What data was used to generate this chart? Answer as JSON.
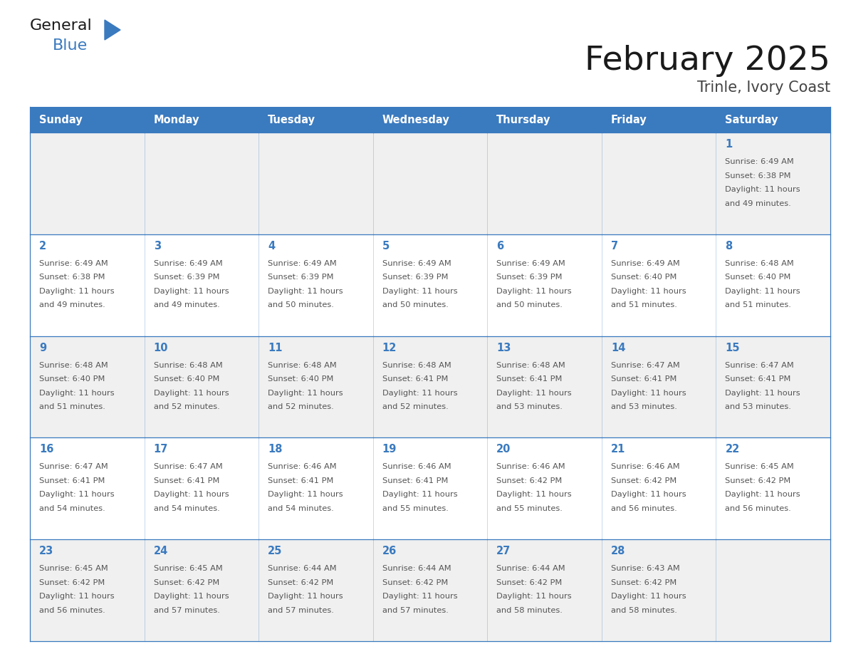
{
  "title": "February 2025",
  "subtitle": "Trinle, Ivory Coast",
  "days_of_week": [
    "Sunday",
    "Monday",
    "Tuesday",
    "Wednesday",
    "Thursday",
    "Friday",
    "Saturday"
  ],
  "header_bg": "#3a7abf",
  "header_text_color": "#ffffff",
  "cell_bg_white": "#ffffff",
  "cell_bg_gray": "#f0f0f0",
  "cell_border_color": "#3a7abf",
  "day_num_color": "#3a7abf",
  "info_text_color": "#555555",
  "title_color": "#1a1a1a",
  "subtitle_color": "#444444",
  "logo_general_color": "#1a1a1a",
  "logo_blue_color": "#3a7abf",
  "calendar": [
    [
      null,
      null,
      null,
      null,
      null,
      null,
      1
    ],
    [
      2,
      3,
      4,
      5,
      6,
      7,
      8
    ],
    [
      9,
      10,
      11,
      12,
      13,
      14,
      15
    ],
    [
      16,
      17,
      18,
      19,
      20,
      21,
      22
    ],
    [
      23,
      24,
      25,
      26,
      27,
      28,
      null
    ]
  ],
  "sunrise_data": {
    "1": [
      "6:49 AM",
      "6:38 PM",
      "11 hours",
      "and 49 minutes."
    ],
    "2": [
      "6:49 AM",
      "6:38 PM",
      "11 hours",
      "and 49 minutes."
    ],
    "3": [
      "6:49 AM",
      "6:39 PM",
      "11 hours",
      "and 49 minutes."
    ],
    "4": [
      "6:49 AM",
      "6:39 PM",
      "11 hours",
      "and 50 minutes."
    ],
    "5": [
      "6:49 AM",
      "6:39 PM",
      "11 hours",
      "and 50 minutes."
    ],
    "6": [
      "6:49 AM",
      "6:39 PM",
      "11 hours",
      "and 50 minutes."
    ],
    "7": [
      "6:49 AM",
      "6:40 PM",
      "11 hours",
      "and 51 minutes."
    ],
    "8": [
      "6:48 AM",
      "6:40 PM",
      "11 hours",
      "and 51 minutes."
    ],
    "9": [
      "6:48 AM",
      "6:40 PM",
      "11 hours",
      "and 51 minutes."
    ],
    "10": [
      "6:48 AM",
      "6:40 PM",
      "11 hours",
      "and 52 minutes."
    ],
    "11": [
      "6:48 AM",
      "6:40 PM",
      "11 hours",
      "and 52 minutes."
    ],
    "12": [
      "6:48 AM",
      "6:41 PM",
      "11 hours",
      "and 52 minutes."
    ],
    "13": [
      "6:48 AM",
      "6:41 PM",
      "11 hours",
      "and 53 minutes."
    ],
    "14": [
      "6:47 AM",
      "6:41 PM",
      "11 hours",
      "and 53 minutes."
    ],
    "15": [
      "6:47 AM",
      "6:41 PM",
      "11 hours",
      "and 53 minutes."
    ],
    "16": [
      "6:47 AM",
      "6:41 PM",
      "11 hours",
      "and 54 minutes."
    ],
    "17": [
      "6:47 AM",
      "6:41 PM",
      "11 hours",
      "and 54 minutes."
    ],
    "18": [
      "6:46 AM",
      "6:41 PM",
      "11 hours",
      "and 54 minutes."
    ],
    "19": [
      "6:46 AM",
      "6:41 PM",
      "11 hours",
      "and 55 minutes."
    ],
    "20": [
      "6:46 AM",
      "6:42 PM",
      "11 hours",
      "and 55 minutes."
    ],
    "21": [
      "6:46 AM",
      "6:42 PM",
      "11 hours",
      "and 56 minutes."
    ],
    "22": [
      "6:45 AM",
      "6:42 PM",
      "11 hours",
      "and 56 minutes."
    ],
    "23": [
      "6:45 AM",
      "6:42 PM",
      "11 hours",
      "and 56 minutes."
    ],
    "24": [
      "6:45 AM",
      "6:42 PM",
      "11 hours",
      "and 57 minutes."
    ],
    "25": [
      "6:44 AM",
      "6:42 PM",
      "11 hours",
      "and 57 minutes."
    ],
    "26": [
      "6:44 AM",
      "6:42 PM",
      "11 hours",
      "and 57 minutes."
    ],
    "27": [
      "6:44 AM",
      "6:42 PM",
      "11 hours",
      "and 58 minutes."
    ],
    "28": [
      "6:43 AM",
      "6:42 PM",
      "11 hours",
      "and 58 minutes."
    ]
  },
  "num_weeks": 5,
  "num_days": 7,
  "fig_width": 11.88,
  "fig_height": 9.18
}
